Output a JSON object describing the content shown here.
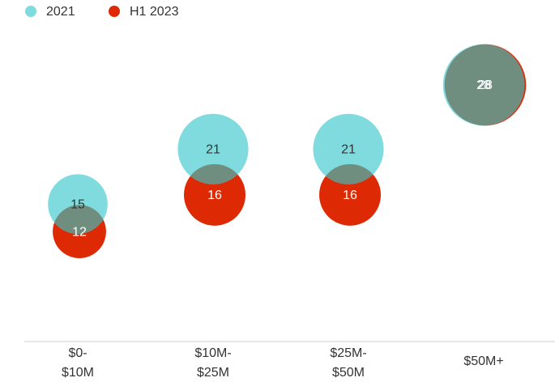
{
  "chart_data": {
    "type": "bubble",
    "categories": [
      "$0-$10M",
      "$10M-$25M",
      "$25M-$50M",
      "$50M+"
    ],
    "series": [
      {
        "name": "2021",
        "color": "#7fdbdd",
        "values": [
          15,
          21,
          21,
          28
        ]
      },
      {
        "name": "H1 2023",
        "color": "#dd2a05",
        "values": [
          12,
          16,
          16,
          28
        ]
      }
    ],
    "overlap_color": "#6f8e80",
    "ylim": [
      0,
      34
    ],
    "legend": "top-left"
  }
}
